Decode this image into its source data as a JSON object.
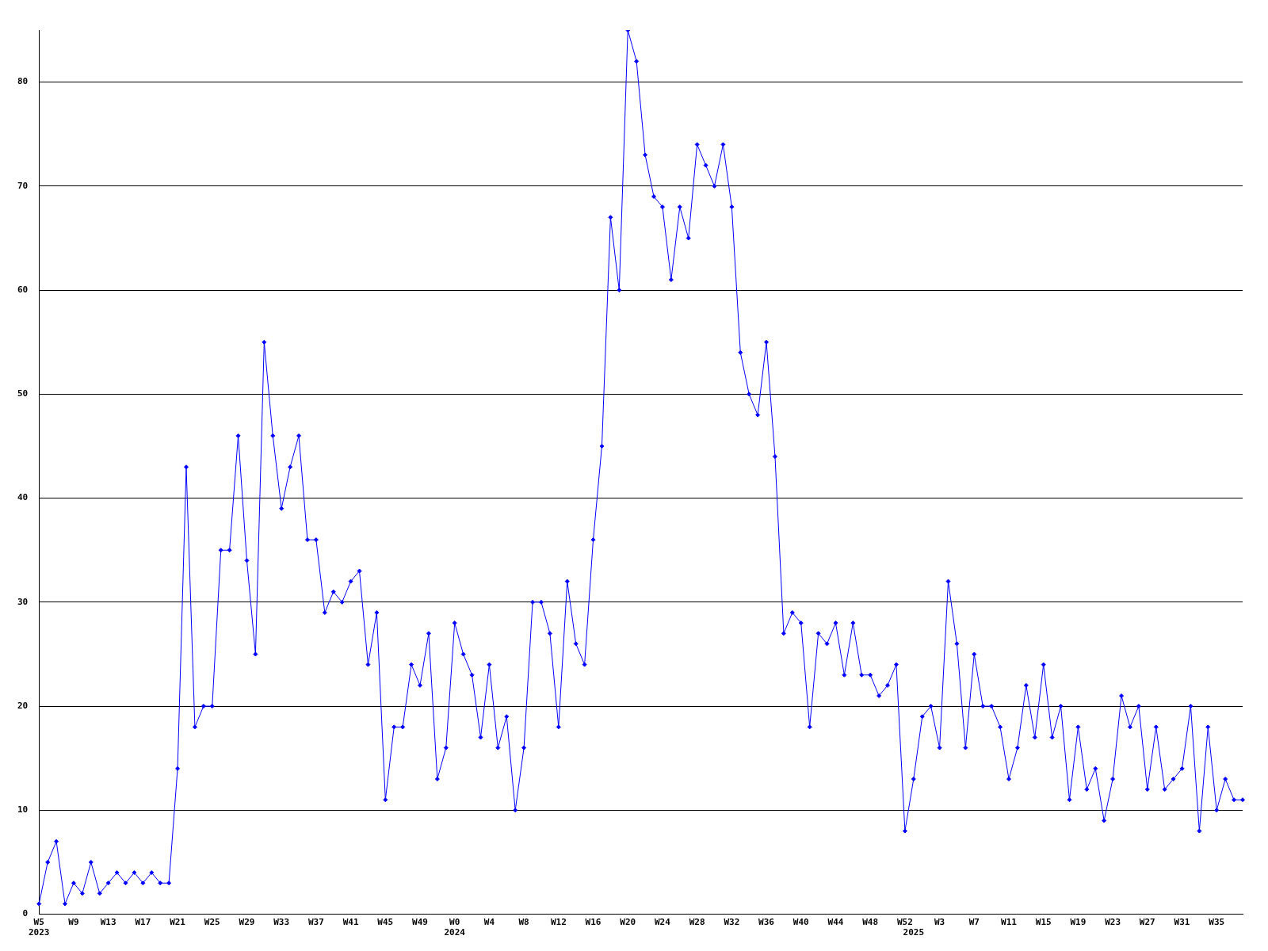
{
  "chart_data": {
    "type": "line",
    "categories": [
      "W5\n2023",
      null,
      null,
      null,
      "W9",
      null,
      null,
      null,
      "W13",
      null,
      null,
      null,
      "W17",
      null,
      null,
      null,
      "W21",
      null,
      null,
      null,
      "W25",
      null,
      null,
      null,
      "W29",
      null,
      null,
      null,
      "W33",
      null,
      null,
      null,
      "W37",
      null,
      null,
      null,
      "W41",
      null,
      null,
      null,
      "W45",
      null,
      null,
      null,
      "W49",
      null,
      null,
      null,
      "W0\n2024",
      null,
      null,
      null,
      "W4",
      null,
      null,
      null,
      "W8",
      null,
      null,
      null,
      "W12",
      null,
      null,
      null,
      "W16",
      null,
      null,
      null,
      "W20",
      null,
      null,
      null,
      "W24",
      null,
      null,
      null,
      "W28",
      null,
      null,
      null,
      "W32",
      null,
      null,
      null,
      "W36",
      null,
      null,
      null,
      "W40",
      null,
      null,
      null,
      "W44",
      null,
      null,
      null,
      "W48",
      null,
      null,
      null,
      "W52",
      "\n2025",
      null,
      null,
      "W3",
      null,
      null,
      null,
      "W7",
      null,
      null,
      null,
      "W11",
      null,
      null,
      null,
      "W15",
      null,
      null,
      null,
      "W19",
      null,
      null,
      null,
      "W23",
      null,
      null,
      null,
      "W27",
      null,
      null,
      null,
      "W31",
      null,
      null,
      null,
      "W35",
      null,
      null,
      null
    ],
    "series": [
      {
        "color": "#0000ff",
        "values": [
          1,
          5,
          7,
          1,
          3,
          2,
          5,
          2,
          3,
          4,
          3,
          4,
          3,
          4,
          3,
          3,
          14,
          43,
          18,
          20,
          20,
          35,
          35,
          46,
          34,
          25,
          55,
          46,
          39,
          43,
          46,
          36,
          36,
          29,
          31,
          30,
          32,
          33,
          24,
          29,
          11,
          18,
          18,
          24,
          22,
          27,
          13,
          16,
          28,
          25,
          23,
          17,
          24,
          16,
          19,
          10,
          16,
          30,
          30,
          27,
          18,
          32,
          26,
          24,
          36,
          45,
          67,
          60,
          85,
          82,
          73,
          69,
          68,
          61,
          68,
          65,
          74,
          72,
          70,
          74,
          68,
          54,
          50,
          48,
          55,
          44,
          27,
          29,
          28,
          18,
          27,
          26,
          28,
          23,
          28,
          23,
          23,
          21,
          22,
          24,
          8,
          13,
          19,
          20,
          16,
          32,
          26,
          16,
          25,
          20,
          20,
          18,
          13,
          16,
          22,
          17,
          24,
          17,
          20,
          11,
          18,
          12,
          14,
          9,
          13,
          21,
          18,
          20,
          12,
          18,
          12,
          13,
          14,
          20,
          8,
          18,
          10,
          13,
          11,
          11
        ]
      }
    ],
    "ylim": [
      0,
      85
    ],
    "yticks": [
      0,
      10,
      20,
      30,
      40,
      50,
      60,
      70,
      80
    ],
    "grid": "y",
    "legend": false,
    "marker": "diamond",
    "line_style": "solid"
  }
}
